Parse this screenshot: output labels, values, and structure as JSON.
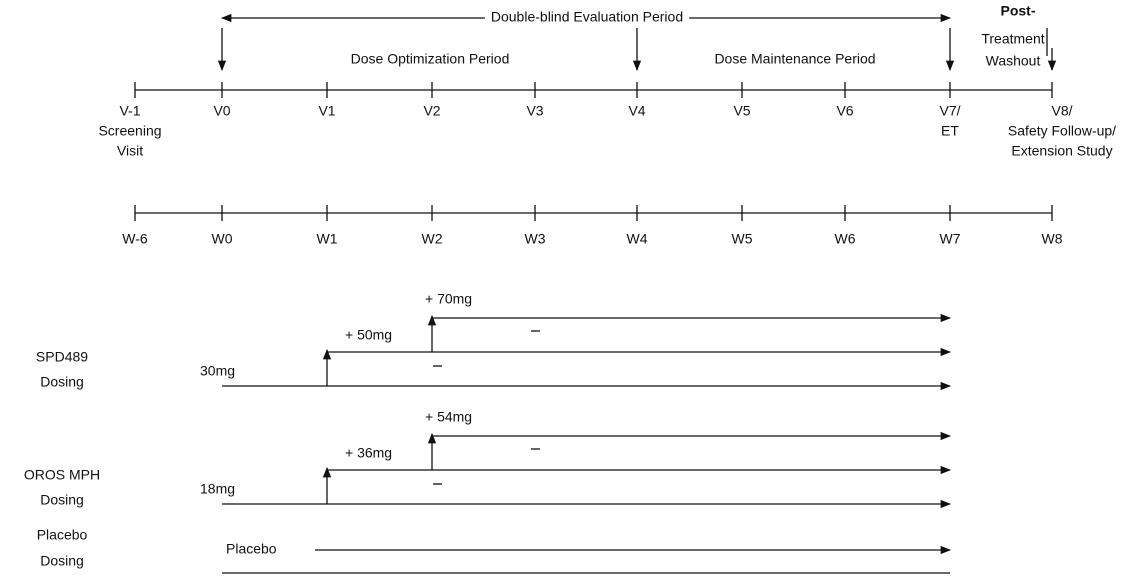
{
  "evaluation_period": "Double-blind Evaluation Period",
  "washout": [
    "Post-",
    "Treatment",
    "Washout"
  ],
  "periods": [
    "Dose Optimization Period",
    "Dose Maintenance Period"
  ],
  "visits": [
    [
      "V-1",
      "Screening",
      "Visit"
    ],
    [
      "V0"
    ],
    [
      "V1"
    ],
    [
      "V2"
    ],
    [
      "V3"
    ],
    [
      "V4"
    ],
    [
      "V5"
    ],
    [
      "V6"
    ],
    [
      "V7/",
      "ET"
    ],
    [
      "V8/",
      "Safety Follow-up/",
      "Extension Study"
    ]
  ],
  "weeks": [
    "W-6",
    "W0",
    "W1",
    "W2",
    "W3",
    "W4",
    "W5",
    "W6",
    "W7",
    "W8"
  ],
  "dosing": [
    {
      "name": [
        "SPD489",
        "Dosing"
      ],
      "doses": [
        "30mg",
        "+ 50mg",
        "+ 70mg"
      ]
    },
    {
      "name": [
        "OROS MPH",
        "Dosing"
      ],
      "doses": [
        "18mg",
        "+ 36mg",
        "+ 54mg"
      ]
    },
    {
      "name": [
        "Placebo",
        "Dosing"
      ],
      "doses": [
        "Placebo"
      ]
    }
  ]
}
